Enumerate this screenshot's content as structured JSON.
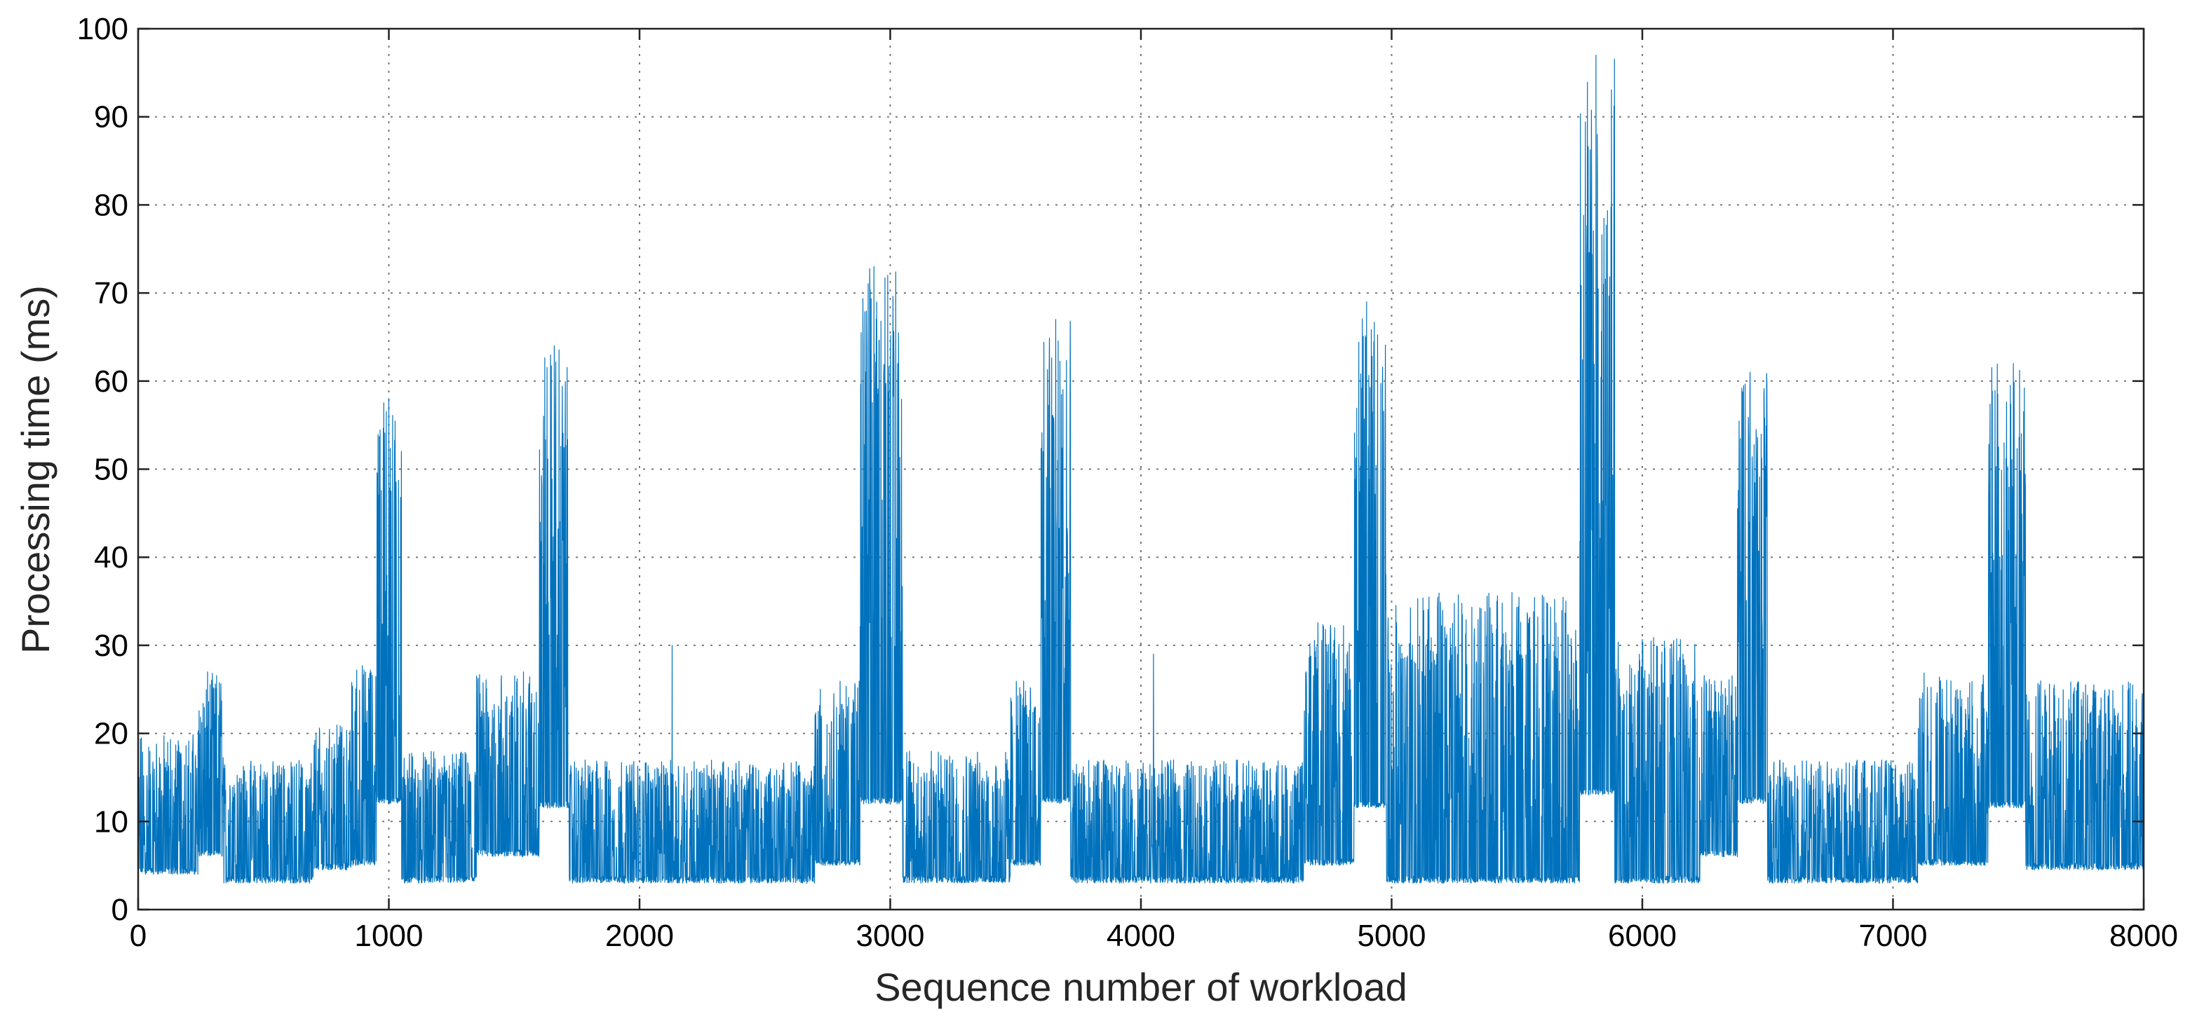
{
  "chart_data": {
    "type": "line",
    "title": "",
    "xlabel": "Sequence number of workload",
    "ylabel": "Processing time (ms)",
    "xlim": [
      0,
      8000
    ],
    "ylim": [
      0,
      100
    ],
    "x_ticks": [
      0,
      1000,
      2000,
      3000,
      4000,
      5000,
      6000,
      7000,
      8000
    ],
    "y_ticks": [
      0,
      10,
      20,
      30,
      40,
      50,
      60,
      70,
      80,
      90,
      100
    ],
    "x_tick_labels": [
      "0",
      "1000",
      "2000",
      "3000",
      "4000",
      "5000",
      "6000",
      "7000",
      "8000"
    ],
    "y_tick_labels": [
      "0",
      "10",
      "20",
      "30",
      "40",
      "50",
      "60",
      "70",
      "80",
      "90",
      "100"
    ],
    "grid": true,
    "legend": "none",
    "color": "#0072BD",
    "series": [
      {
        "x_range": [
          0,
          8000
        ],
        "segments": [
          {
            "x": [
              0,
              330
            ],
            "base": 4,
            "peak": 20
          },
          {
            "x": [
              240,
              340
            ],
            "base": 6,
            "peak": 27
          },
          {
            "x": [
              340,
              700
            ],
            "base": 3,
            "peak": 17
          },
          {
            "x": [
              700,
              850
            ],
            "base": 4.5,
            "peak": 21
          },
          {
            "x": [
              850,
              950
            ],
            "base": 5,
            "peak": 28
          },
          {
            "x": [
              950,
              1050
            ],
            "base": 12,
            "peak": 58
          },
          {
            "x": [
              1050,
              1350
            ],
            "base": 3,
            "peak": 18
          },
          {
            "x": [
              1350,
              1600
            ],
            "base": 6,
            "peak": 27
          },
          {
            "x": [
              1600,
              1720
            ],
            "base": 11.5,
            "peak": 64
          },
          {
            "x": [
              1720,
              2700
            ],
            "base": 3,
            "peak": 17
          },
          {
            "x": [
              2700,
              2880
            ],
            "base": 5,
            "peak": 26
          },
          {
            "x": [
              2880,
              3050
            ],
            "base": 12,
            "peak": 73
          },
          {
            "x": [
              3050,
              3480
            ],
            "base": 3,
            "peak": 18
          },
          {
            "x": [
              3480,
              3600
            ],
            "base": 5,
            "peak": 26
          },
          {
            "x": [
              3600,
              3720
            ],
            "base": 12,
            "peak": 67
          },
          {
            "x": [
              3720,
              4650
            ],
            "base": 3,
            "peak": 17
          },
          {
            "x": [
              4650,
              4850
            ],
            "base": 5,
            "peak": 33
          },
          {
            "x": [
              4850,
              4980
            ],
            "base": 11.5,
            "peak": 69
          },
          {
            "x": [
              4980,
              5750
            ],
            "base": 3,
            "peak": 36
          },
          {
            "x": [
              5750,
              5890
            ],
            "base": 13,
            "peak": 97
          },
          {
            "x": [
              5890,
              6230
            ],
            "base": 3,
            "peak": 31
          },
          {
            "x": [
              6230,
              6380
            ],
            "base": 6,
            "peak": 27
          },
          {
            "x": [
              6380,
              6500
            ],
            "base": 12,
            "peak": 61
          },
          {
            "x": [
              6500,
              7100
            ],
            "base": 3,
            "peak": 17
          },
          {
            "x": [
              7100,
              7380
            ],
            "base": 5,
            "peak": 27
          },
          {
            "x": [
              7380,
              7530
            ],
            "base": 11.5,
            "peak": 62
          },
          {
            "x": [
              7530,
              8000
            ],
            "base": 4.5,
            "peak": 26
          }
        ],
        "spikes": [
          {
            "x": 1000,
            "y": 58
          },
          {
            "x": 1660,
            "y": 64
          },
          {
            "x": 2935,
            "y": 73
          },
          {
            "x": 3660,
            "y": 67
          },
          {
            "x": 4900,
            "y": 69
          },
          {
            "x": 5815,
            "y": 97
          },
          {
            "x": 5845,
            "y": 71
          },
          {
            "x": 6430,
            "y": 61
          },
          {
            "x": 7480,
            "y": 62
          },
          {
            "x": 5480,
            "y": 36
          },
          {
            "x": 5420,
            "y": 35
          },
          {
            "x": 4050,
            "y": 29
          },
          {
            "x": 2130,
            "y": 30
          },
          {
            "x": 1050,
            "y": 52
          },
          {
            "x": 3030,
            "y": 62
          }
        ]
      }
    ]
  }
}
